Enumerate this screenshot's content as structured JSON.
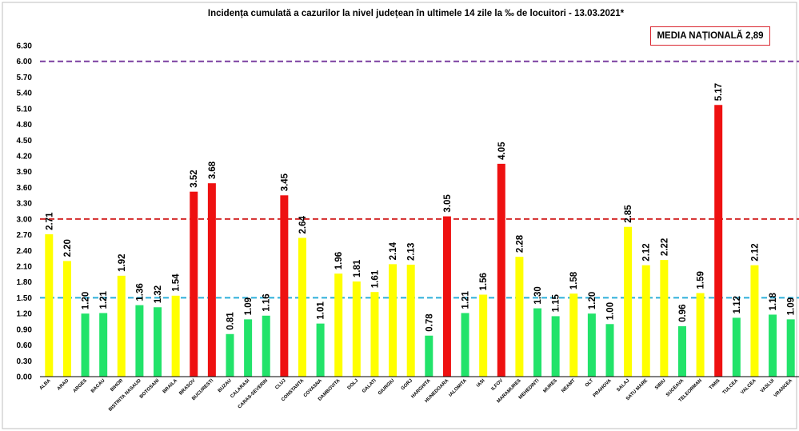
{
  "chart_data": {
    "type": "bar",
    "title": "Incidența cumulată a cazurilor la nivel județean în ultimele 14 zile la ‰ de locuitori - 13.03.2021*",
    "media_nationala_label": "MEDIA NAȚIONALĂ  2,89",
    "ylim": [
      0,
      6.3
    ],
    "y_ticks": [
      "0.00",
      "0.30",
      "0.60",
      "0.90",
      "1.20",
      "1.50",
      "1.80",
      "2.10",
      "2.40",
      "2.70",
      "3.00",
      "3.30",
      "3.60",
      "3.90",
      "4.20",
      "4.50",
      "4.80",
      "5.10",
      "5.40",
      "5.70",
      "6.00",
      "6.30"
    ],
    "categories": [
      "ALBA",
      "ARAD",
      "ARGES",
      "BACAU",
      "BIHOR",
      "BISTRITA NASAUD",
      "BOTOSANI",
      "BRAILA",
      "BRASOV",
      "BUCURESTI",
      "BUZAU",
      "CALARASI",
      "CARAS-SEVERIN",
      "CLUJ",
      "CONSTANTA",
      "COVASNA",
      "DAMBOVITA",
      "DOLJ",
      "GALATI",
      "GIURGIU",
      "GORJ",
      "HARGHITA",
      "HUNEDOARA",
      "IALOMITA",
      "IASI",
      "ILFOV",
      "MARAMURES",
      "MEHEDINTI",
      "MURES",
      "NEAMT",
      "OLT",
      "PRAHOVA",
      "SALAJ",
      "SATU MARE",
      "SIBIU",
      "SUCEAVA",
      "TELEORMAN",
      "TIMIS",
      "TULCEA",
      "VALCEA",
      "VASLUI",
      "VRANCEA"
    ],
    "values": [
      2.71,
      2.2,
      1.2,
      1.21,
      1.92,
      1.36,
      1.32,
      1.54,
      3.52,
      3.68,
      0.81,
      1.09,
      1.16,
      3.45,
      2.64,
      1.01,
      1.96,
      1.81,
      1.61,
      2.14,
      2.13,
      0.78,
      3.05,
      1.21,
      1.56,
      4.05,
      2.28,
      1.3,
      1.15,
      1.58,
      1.2,
      1.0,
      2.85,
      2.12,
      2.22,
      0.96,
      1.59,
      5.17,
      1.12,
      2.12,
      1.18,
      1.09
    ],
    "labels": [
      "2.71",
      "2.20",
      "1.20",
      "1.21",
      "1.92",
      "1.36",
      "1.32",
      "1.54",
      "3.52",
      "3.68",
      "0.81",
      "1.09",
      "1.16",
      "3.45",
      "2.64",
      "1.01",
      "1.96",
      "1.81",
      "1.61",
      "2.14",
      "2.13",
      "0.78",
      "3.05",
      "1.21",
      "1.56",
      "4.05",
      "2.28",
      "1.30",
      "1.15",
      "1.58",
      "1.20",
      "1.00",
      "2.85",
      "2.12",
      "2.22",
      "0.96",
      "1.59",
      "5.17",
      "1.12",
      "2.12",
      "1.18",
      "1.09"
    ],
    "thresholds": [
      {
        "value": 1.5,
        "color": "#2bafd9"
      },
      {
        "value": 3.0,
        "color": "#d42a2a"
      },
      {
        "value": 6.0,
        "color": "#7a3fa0"
      }
    ],
    "colors": {
      "green": "#22e36a",
      "yellow": "#ffff00",
      "red": "#ee1111"
    },
    "legend": "none",
    "grid": false
  }
}
